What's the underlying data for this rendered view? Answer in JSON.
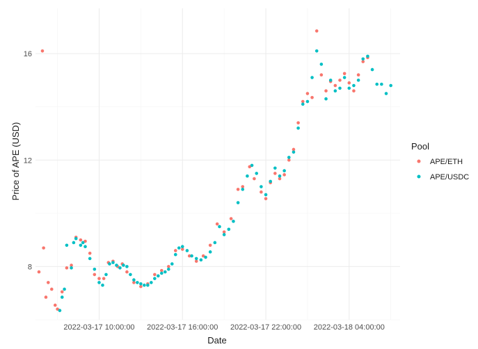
{
  "chart_data": {
    "type": "scatter",
    "xlabel": "Date",
    "ylabel": "Price of APE (USD)",
    "x_type": "datetime",
    "xlim": [
      "2022-03-17 05:25",
      "2022-03-18 07:40"
    ],
    "ylim": [
      6.0,
      17.7
    ],
    "x_ticks": [
      {
        "value": "2022-03-17 10:00",
        "label": "2022-03-17 10:00:00"
      },
      {
        "value": "2022-03-17 16:00",
        "label": "2022-03-17 16:00:00"
      },
      {
        "value": "2022-03-17 22:00",
        "label": "2022-03-17 22:00:00"
      },
      {
        "value": "2022-03-18 04:00",
        "label": "2022-03-18 04:00:00"
      }
    ],
    "x_minor_ticks": [
      "2022-03-17 07:00",
      "2022-03-17 13:00",
      "2022-03-17 19:00",
      "2022-03-18 01:00",
      "2022-03-18 07:00"
    ],
    "y_ticks": [
      {
        "value": 8,
        "label": "8"
      },
      {
        "value": 12,
        "label": "12"
      },
      {
        "value": 16,
        "label": "16"
      }
    ],
    "y_minor_ticks": [
      6,
      10,
      14
    ],
    "grid": true,
    "legend": {
      "title": "Pool",
      "position": "right"
    },
    "series": [
      {
        "name": "APE/ETH",
        "color": "#F8766D",
        "points": [
          [
            "2022-03-17 05:40",
            7.8
          ],
          [
            "2022-03-17 05:55",
            16.1
          ],
          [
            "2022-03-17 06:00",
            8.7
          ],
          [
            "2022-03-17 06:10",
            6.85
          ],
          [
            "2022-03-17 06:20",
            7.4
          ],
          [
            "2022-03-17 06:35",
            7.15
          ],
          [
            "2022-03-17 06:50",
            6.55
          ],
          [
            "2022-03-17 07:00",
            6.4
          ],
          [
            "2022-03-17 07:20",
            7.05
          ],
          [
            "2022-03-17 07:40",
            7.95
          ],
          [
            "2022-03-17 08:00",
            8.05
          ],
          [
            "2022-03-17 08:20",
            9.1
          ],
          [
            "2022-03-17 08:40",
            9.0
          ],
          [
            "2022-03-17 09:00",
            8.95
          ],
          [
            "2022-03-17 09:20",
            8.5
          ],
          [
            "2022-03-17 09:40",
            7.7
          ],
          [
            "2022-03-17 10:00",
            7.55
          ],
          [
            "2022-03-17 10:20",
            7.55
          ],
          [
            "2022-03-17 10:40",
            8.15
          ],
          [
            "2022-03-17 11:00",
            8.2
          ],
          [
            "2022-03-17 11:20",
            8.0
          ],
          [
            "2022-03-17 11:40",
            8.1
          ],
          [
            "2022-03-17 12:00",
            7.8
          ],
          [
            "2022-03-17 12:30",
            7.4
          ],
          [
            "2022-03-17 13:00",
            7.25
          ],
          [
            "2022-03-17 13:30",
            7.35
          ],
          [
            "2022-03-17 14:00",
            7.7
          ],
          [
            "2022-03-17 14:30",
            7.85
          ],
          [
            "2022-03-17 15:00",
            8.0
          ],
          [
            "2022-03-17 15:30",
            8.6
          ],
          [
            "2022-03-17 16:00",
            8.65
          ],
          [
            "2022-03-17 16:30",
            8.4
          ],
          [
            "2022-03-17 17:00",
            8.2
          ],
          [
            "2022-03-17 17:30",
            8.4
          ],
          [
            "2022-03-17 18:00",
            8.8
          ],
          [
            "2022-03-17 18:30",
            9.6
          ],
          [
            "2022-03-17 19:00",
            9.3
          ],
          [
            "2022-03-17 19:30",
            9.8
          ],
          [
            "2022-03-17 20:00",
            10.9
          ],
          [
            "2022-03-17 20:20",
            11.0
          ],
          [
            "2022-03-17 20:50",
            11.75
          ],
          [
            "2022-03-17 21:10",
            11.3
          ],
          [
            "2022-03-17 21:40",
            10.8
          ],
          [
            "2022-03-17 22:00",
            10.55
          ],
          [
            "2022-03-17 22:20",
            11.15
          ],
          [
            "2022-03-17 22:40",
            11.5
          ],
          [
            "2022-03-17 23:00",
            11.3
          ],
          [
            "2022-03-17 23:20",
            11.45
          ],
          [
            "2022-03-17 23:40",
            12.0
          ],
          [
            "2022-03-18 00:00",
            12.4
          ],
          [
            "2022-03-18 00:20",
            13.4
          ],
          [
            "2022-03-18 00:40",
            14.2
          ],
          [
            "2022-03-18 01:00",
            14.5
          ],
          [
            "2022-03-18 01:20",
            14.35
          ],
          [
            "2022-03-18 01:40",
            16.85
          ],
          [
            "2022-03-18 02:00",
            15.2
          ],
          [
            "2022-03-18 02:20",
            14.6
          ],
          [
            "2022-03-18 02:40",
            14.95
          ],
          [
            "2022-03-18 03:00",
            14.8
          ],
          [
            "2022-03-18 03:20",
            15.0
          ],
          [
            "2022-03-18 03:40",
            15.25
          ],
          [
            "2022-03-18 04:00",
            14.9
          ],
          [
            "2022-03-18 04:20",
            14.6
          ],
          [
            "2022-03-18 04:40",
            15.2
          ],
          [
            "2022-03-18 05:00",
            15.7
          ],
          [
            "2022-03-18 05:20",
            15.85
          ]
        ]
      },
      {
        "name": "APE/USDC",
        "color": "#00BFC4",
        "points": [
          [
            "2022-03-17 07:10",
            6.35
          ],
          [
            "2022-03-17 07:20",
            6.85
          ],
          [
            "2022-03-17 07:30",
            7.15
          ],
          [
            "2022-03-17 07:40",
            8.8
          ],
          [
            "2022-03-17 08:00",
            7.95
          ],
          [
            "2022-03-17 08:10",
            8.9
          ],
          [
            "2022-03-17 08:20",
            9.05
          ],
          [
            "2022-03-17 08:40",
            8.8
          ],
          [
            "2022-03-17 08:50",
            8.9
          ],
          [
            "2022-03-17 09:00",
            8.75
          ],
          [
            "2022-03-17 09:20",
            8.3
          ],
          [
            "2022-03-17 09:40",
            7.9
          ],
          [
            "2022-03-17 10:00",
            7.4
          ],
          [
            "2022-03-17 10:15",
            7.3
          ],
          [
            "2022-03-17 10:30",
            7.7
          ],
          [
            "2022-03-17 10:45",
            8.1
          ],
          [
            "2022-03-17 11:00",
            8.15
          ],
          [
            "2022-03-17 11:15",
            8.05
          ],
          [
            "2022-03-17 11:30",
            7.95
          ],
          [
            "2022-03-17 11:45",
            8.05
          ],
          [
            "2022-03-17 12:00",
            8.0
          ],
          [
            "2022-03-17 12:15",
            7.7
          ],
          [
            "2022-03-17 12:30",
            7.5
          ],
          [
            "2022-03-17 12:45",
            7.4
          ],
          [
            "2022-03-17 13:00",
            7.35
          ],
          [
            "2022-03-17 13:15",
            7.3
          ],
          [
            "2022-03-17 13:30",
            7.3
          ],
          [
            "2022-03-17 13:45",
            7.4
          ],
          [
            "2022-03-17 14:00",
            7.55
          ],
          [
            "2022-03-17 14:15",
            7.65
          ],
          [
            "2022-03-17 14:30",
            7.75
          ],
          [
            "2022-03-17 14:45",
            7.8
          ],
          [
            "2022-03-17 15:00",
            7.9
          ],
          [
            "2022-03-17 15:15",
            8.1
          ],
          [
            "2022-03-17 15:30",
            8.45
          ],
          [
            "2022-03-17 15:45",
            8.7
          ],
          [
            "2022-03-17 16:00",
            8.75
          ],
          [
            "2022-03-17 16:20",
            8.6
          ],
          [
            "2022-03-17 16:40",
            8.4
          ],
          [
            "2022-03-17 17:00",
            8.3
          ],
          [
            "2022-03-17 17:20",
            8.25
          ],
          [
            "2022-03-17 17:40",
            8.35
          ],
          [
            "2022-03-17 18:00",
            8.55
          ],
          [
            "2022-03-17 18:20",
            8.9
          ],
          [
            "2022-03-17 18:40",
            9.5
          ],
          [
            "2022-03-17 19:00",
            9.2
          ],
          [
            "2022-03-17 19:20",
            9.4
          ],
          [
            "2022-03-17 19:40",
            9.7
          ],
          [
            "2022-03-17 20:00",
            10.4
          ],
          [
            "2022-03-17 20:20",
            10.9
          ],
          [
            "2022-03-17 20:40",
            11.4
          ],
          [
            "2022-03-17 21:00",
            11.8
          ],
          [
            "2022-03-17 21:20",
            11.5
          ],
          [
            "2022-03-17 21:40",
            11.0
          ],
          [
            "2022-03-17 22:00",
            10.7
          ],
          [
            "2022-03-17 22:20",
            11.2
          ],
          [
            "2022-03-17 22:40",
            11.7
          ],
          [
            "2022-03-17 23:00",
            11.4
          ],
          [
            "2022-03-17 23:20",
            11.6
          ],
          [
            "2022-03-17 23:40",
            12.1
          ],
          [
            "2022-03-18 00:00",
            12.3
          ],
          [
            "2022-03-18 00:20",
            13.2
          ],
          [
            "2022-03-18 00:40",
            14.1
          ],
          [
            "2022-03-18 01:00",
            14.2
          ],
          [
            "2022-03-18 01:20",
            15.1
          ],
          [
            "2022-03-18 01:40",
            16.1
          ],
          [
            "2022-03-18 02:00",
            15.6
          ],
          [
            "2022-03-18 02:20",
            14.3
          ],
          [
            "2022-03-18 02:40",
            15.0
          ],
          [
            "2022-03-18 03:00",
            14.6
          ],
          [
            "2022-03-18 03:20",
            14.7
          ],
          [
            "2022-03-18 03:40",
            15.1
          ],
          [
            "2022-03-18 04:00",
            14.7
          ],
          [
            "2022-03-18 04:20",
            14.8
          ],
          [
            "2022-03-18 04:40",
            15.0
          ],
          [
            "2022-03-18 05:00",
            15.8
          ],
          [
            "2022-03-18 05:20",
            15.9
          ],
          [
            "2022-03-18 05:40",
            15.4
          ],
          [
            "2022-03-18 06:00",
            14.85
          ],
          [
            "2022-03-18 06:20",
            14.85
          ],
          [
            "2022-03-18 06:40",
            14.5
          ],
          [
            "2022-03-18 07:00",
            14.8
          ]
        ]
      }
    ]
  }
}
